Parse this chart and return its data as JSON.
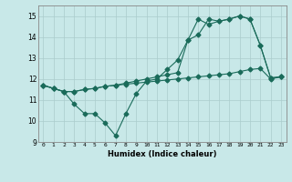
{
  "line1_x": [
    0,
    1,
    2,
    3,
    4,
    5,
    6,
    7,
    8,
    9,
    10,
    11,
    12,
    13,
    14,
    15,
    16,
    17,
    18,
    19,
    20,
    21,
    22,
    23
  ],
  "line1_y": [
    11.7,
    11.55,
    11.4,
    10.8,
    10.35,
    10.35,
    9.9,
    9.3,
    10.35,
    11.3,
    11.9,
    12.0,
    12.45,
    12.9,
    13.85,
    14.85,
    14.6,
    14.75,
    14.85,
    15.0,
    14.85,
    13.6,
    12.05,
    12.1
  ],
  "line2_x": [
    0,
    1,
    2,
    3,
    4,
    5,
    6,
    7,
    8,
    9,
    10,
    11,
    12,
    13,
    14,
    15,
    16,
    17,
    18,
    19,
    20,
    21,
    22,
    23
  ],
  "line2_y": [
    11.7,
    11.55,
    11.4,
    11.4,
    11.5,
    11.55,
    11.65,
    11.7,
    11.8,
    11.9,
    12.0,
    12.1,
    12.2,
    12.3,
    13.85,
    14.1,
    14.85,
    14.75,
    14.85,
    15.0,
    14.85,
    13.6,
    12.05,
    12.1
  ],
  "line3_x": [
    0,
    1,
    2,
    3,
    4,
    5,
    6,
    7,
    8,
    9,
    10,
    11,
    12,
    13,
    14,
    15,
    16,
    17,
    18,
    19,
    20,
    21,
    22,
    23
  ],
  "line3_y": [
    11.7,
    11.55,
    11.4,
    11.4,
    11.5,
    11.55,
    11.65,
    11.7,
    11.75,
    11.8,
    11.85,
    11.9,
    11.95,
    12.0,
    12.05,
    12.1,
    12.15,
    12.2,
    12.25,
    12.35,
    12.45,
    12.5,
    12.0,
    12.1
  ],
  "color": "#1a6b5a",
  "bg_color": "#c8e8e8",
  "grid_color": "#aacccc",
  "xlabel": "Humidex (Indice chaleur)",
  "ylim": [
    9,
    15.5
  ],
  "xlim": [
    -0.5,
    23.5
  ],
  "yticks": [
    9,
    10,
    11,
    12,
    13,
    14,
    15
  ],
  "xticks": [
    0,
    1,
    2,
    3,
    4,
    5,
    6,
    7,
    8,
    9,
    10,
    11,
    12,
    13,
    14,
    15,
    16,
    17,
    18,
    19,
    20,
    21,
    22,
    23
  ]
}
